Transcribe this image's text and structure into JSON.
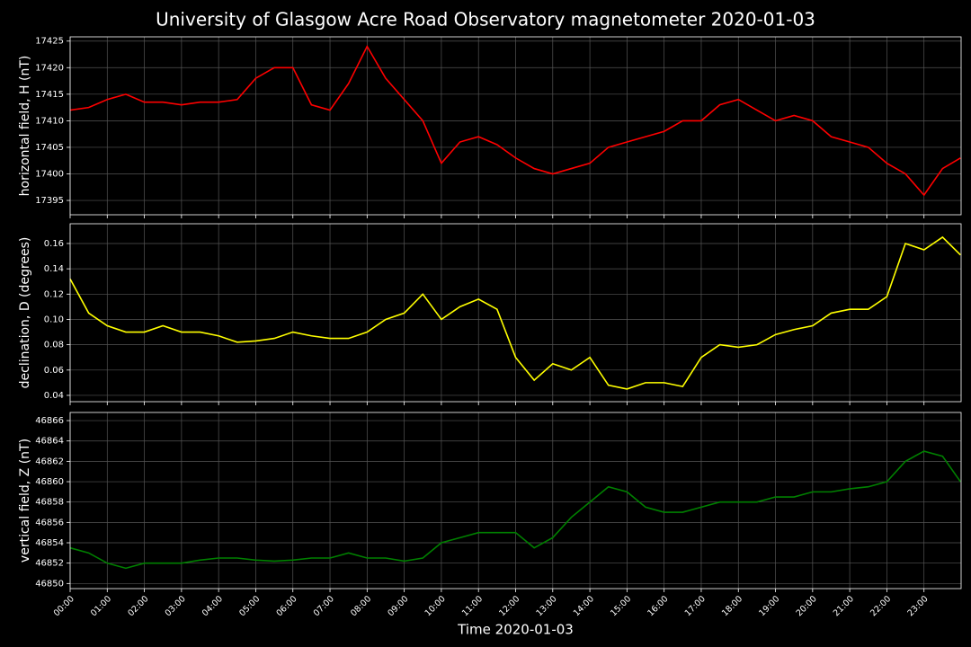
{
  "title": "University of Glasgow Acre Road Observatory magnetometer 2020-01-03",
  "chart_data": [
    {
      "type": "line",
      "ylabel": "horizontal field, H (nT)",
      "color": "#ff0000",
      "x": [
        "00:00",
        "00:30",
        "01:00",
        "01:30",
        "02:00",
        "02:30",
        "03:00",
        "03:30",
        "04:00",
        "04:30",
        "05:00",
        "05:30",
        "06:00",
        "06:30",
        "07:00",
        "07:30",
        "08:00",
        "08:30",
        "09:00",
        "09:30",
        "10:00",
        "10:30",
        "11:00",
        "11:30",
        "12:00",
        "12:30",
        "13:00",
        "13:30",
        "14:00",
        "14:30",
        "15:00",
        "15:30",
        "16:00",
        "16:30",
        "17:00",
        "17:30",
        "18:00",
        "18:30",
        "19:00",
        "19:30",
        "20:00",
        "20:30",
        "21:00",
        "21:30",
        "22:00",
        "22:30",
        "23:00",
        "23:30",
        "23:59"
      ],
      "values": [
        17412,
        17412.5,
        17414,
        17415,
        17413.5,
        17413.5,
        17413,
        17413.5,
        17413.5,
        17414,
        17418,
        17420,
        17420,
        17413,
        17412,
        17417,
        17424,
        17418,
        17414,
        17410,
        17402,
        17406,
        17407,
        17405.5,
        17403,
        17401,
        17400,
        17401,
        17402,
        17405,
        17406,
        17407,
        17408,
        17410,
        17410,
        17413,
        17414,
        17412,
        17410,
        17411,
        17410,
        17407,
        17406,
        17405,
        17402,
        17400,
        17396,
        17401,
        17403
      ],
      "xlim": [
        "00:00",
        "24:00"
      ],
      "ylim": [
        17392.3,
        17425.8
      ],
      "yticks": [
        17395,
        17400,
        17405,
        17410,
        17415,
        17420,
        17425
      ],
      "grid": true
    },
    {
      "type": "line",
      "ylabel": "declination, D (degrees)",
      "color": "#ffff00",
      "x": [
        "00:00",
        "00:30",
        "01:00",
        "01:30",
        "02:00",
        "02:30",
        "03:00",
        "03:30",
        "04:00",
        "04:30",
        "05:00",
        "05:30",
        "06:00",
        "06:30",
        "07:00",
        "07:30",
        "08:00",
        "08:30",
        "09:00",
        "09:30",
        "10:00",
        "10:30",
        "11:00",
        "11:30",
        "12:00",
        "12:30",
        "13:00",
        "13:30",
        "14:00",
        "14:30",
        "15:00",
        "15:30",
        "16:00",
        "16:30",
        "17:00",
        "17:30",
        "18:00",
        "18:30",
        "19:00",
        "19:30",
        "20:00",
        "20:30",
        "21:00",
        "21:30",
        "22:00",
        "22:30",
        "23:00",
        "23:30",
        "23:59"
      ],
      "values": [
        0.132,
        0.105,
        0.095,
        0.09,
        0.09,
        0.095,
        0.09,
        0.09,
        0.087,
        0.082,
        0.083,
        0.085,
        0.09,
        0.087,
        0.085,
        0.085,
        0.09,
        0.1,
        0.105,
        0.12,
        0.1,
        0.11,
        0.116,
        0.108,
        0.07,
        0.052,
        0.065,
        0.06,
        0.07,
        0.048,
        0.045,
        0.05,
        0.05,
        0.047,
        0.07,
        0.08,
        0.078,
        0.08,
        0.088,
        0.092,
        0.095,
        0.105,
        0.108,
        0.108,
        0.118,
        0.16,
        0.155,
        0.165,
        0.151
      ],
      "xlim": [
        "00:00",
        "24:00"
      ],
      "ylim": [
        0.035,
        0.1756
      ],
      "yticks": [
        0.04,
        0.06,
        0.08,
        {
          "value": 0.1,
          "label": "0.10"
        },
        0.12,
        0.14,
        0.16
      ],
      "grid": true
    },
    {
      "type": "line",
      "ylabel": "vertical field, Z (nT)",
      "color": "#008000",
      "xlabel": "Time 2020-01-03",
      "x": [
        "00:00",
        "00:30",
        "01:00",
        "01:30",
        "02:00",
        "02:30",
        "03:00",
        "03:30",
        "04:00",
        "04:30",
        "05:00",
        "05:30",
        "06:00",
        "06:30",
        "07:00",
        "07:30",
        "08:00",
        "08:30",
        "09:00",
        "09:30",
        "10:00",
        "10:30",
        "11:00",
        "11:30",
        "12:00",
        "12:30",
        "13:00",
        "13:30",
        "14:00",
        "14:30",
        "15:00",
        "15:30",
        "16:00",
        "16:30",
        "17:00",
        "17:30",
        "18:00",
        "18:30",
        "19:00",
        "19:30",
        "20:00",
        "20:30",
        "21:00",
        "21:30",
        "22:00",
        "22:30",
        "23:00",
        "23:30",
        "23:59"
      ],
      "values": [
        46853.5,
        46853,
        46852,
        46851.5,
        46852,
        46852,
        46852,
        46852.3,
        46852.5,
        46852.5,
        46852.3,
        46852.2,
        46852.3,
        46852.5,
        46852.5,
        46853,
        46852.5,
        46852.5,
        46852.2,
        46852.5,
        46854,
        46854.5,
        46855,
        46855,
        46855,
        46853.5,
        46854.5,
        46856.5,
        46858,
        46859.5,
        46859,
        46857.5,
        46857,
        46857,
        46857.5,
        46858,
        46858,
        46858,
        46858.5,
        46858.5,
        46859,
        46859,
        46859.3,
        46859.5,
        46860,
        46862,
        46863,
        46862.5,
        46860
      ],
      "xlim": [
        "00:00",
        "24:00"
      ],
      "ylim": [
        46849.5,
        46866.8
      ],
      "yticks": [
        46850,
        46852,
        46854,
        46856,
        46858,
        46860,
        46862,
        46864,
        46866
      ],
      "xticks": [
        "00:00",
        "01:00",
        "02:00",
        "03:00",
        "04:00",
        "05:00",
        "06:00",
        "07:00",
        "08:00",
        "09:00",
        "10:00",
        "11:00",
        "12:00",
        "13:00",
        "14:00",
        "15:00",
        "16:00",
        "17:00",
        "18:00",
        "19:00",
        "20:00",
        "21:00",
        "22:00",
        "23:00"
      ],
      "grid": true
    }
  ]
}
